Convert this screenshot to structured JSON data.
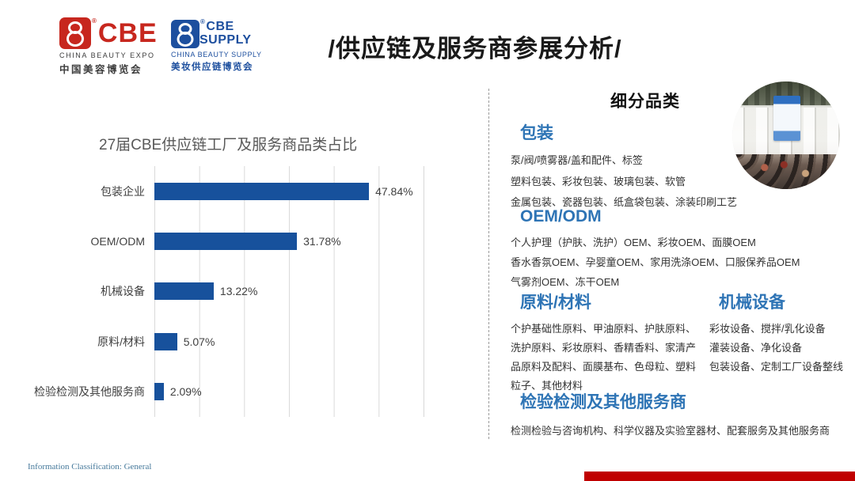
{
  "header": {
    "title": "/供应链及服务商参展分析/",
    "logo_cbe": {
      "reg": "®",
      "name": "CBE",
      "sub_en": "CHINA BEAUTY EXPO",
      "sub_cn": "中国美容博览会"
    },
    "logo_supply": {
      "reg": "®",
      "line1": "CBE",
      "line2": "SUPPLY",
      "sub_en": "CHINA BEAUTY SUPPLY",
      "sub_cn": "美妆供应链博览会"
    }
  },
  "chart_data": {
    "type": "bar",
    "orientation": "horizontal",
    "title": "27届CBE供应链工厂及服务商品类占比",
    "categories": [
      "包装企业",
      "OEM/ODM",
      "机械设备",
      "原料/材料",
      "检验检测及其他服务商"
    ],
    "values": [
      47.84,
      31.78,
      13.22,
      5.07,
      2.09
    ],
    "data_labels": [
      "47.84%",
      "31.78%",
      "13.22%",
      "5.07%",
      "2.09%"
    ],
    "xlabel": "",
    "ylabel": "",
    "xlim": [
      0,
      60
    ],
    "gridline_interval_percent": 10,
    "grid": true,
    "legend": false,
    "bar_color": "#17519c"
  },
  "right_panel": {
    "title": "细分品类",
    "photo": "exhibition-hall-crowd-photo",
    "sections": [
      {
        "heading": "包装",
        "lines": [
          "泵/阀/喷雾器/盖和配件、标签",
          "塑料包装、彩妆包装、玻璃包装、软管",
          "金属包装、瓷器包装、纸盒袋包装、涂装印刷工艺"
        ]
      },
      {
        "heading": "OEM/ODM",
        "lines": [
          "个人护理（护肤、洗护）OEM、彩妆OEM、面膜OEM",
          "香水香氛OEM、孕婴童OEM、家用洗涤OEM、口服保养品OEM",
          "气雾剂OEM、冻干OEM"
        ]
      },
      {
        "heading": "原料/材料",
        "lines": [
          "个护基础性原料、甲油原料、护肤原料、",
          "洗护原料、彩妆原料、香精香料、家清产",
          "品原料及配料、面膜基布、色母粒、塑料",
          "粒子、其他材料"
        ]
      },
      {
        "heading": "机械设备",
        "lines": [
          "彩妆设备、搅拌/乳化设备",
          "灌装设备、净化设备",
          "包装设备、定制工厂设备整线"
        ]
      },
      {
        "heading": "检验检测及其他服务商",
        "lines": [
          "检测检验与咨询机构、科学仪器及实验室器材、配套服务及其他服务商"
        ]
      }
    ]
  },
  "footer": {
    "classification": "Information Classification: General"
  },
  "colors": {
    "brand_red": "#c7271e",
    "brand_blue": "#1d4f9e",
    "heading_blue": "#2e74b5",
    "bar_blue": "#17519c",
    "gridline_gray": "#d9d9d9",
    "chart_text_gray": "#595959",
    "bottom_bar_red": "#c00000"
  }
}
